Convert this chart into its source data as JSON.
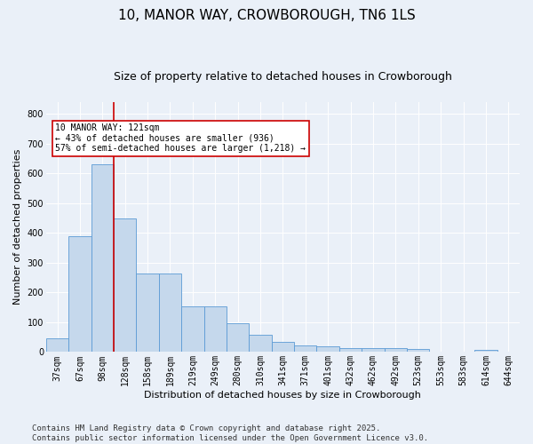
{
  "title": "10, MANOR WAY, CROWBOROUGH, TN6 1LS",
  "subtitle": "Size of property relative to detached houses in Crowborough",
  "xlabel": "Distribution of detached houses by size in Crowborough",
  "ylabel": "Number of detached properties",
  "categories": [
    "37sqm",
    "67sqm",
    "98sqm",
    "128sqm",
    "158sqm",
    "189sqm",
    "219sqm",
    "249sqm",
    "280sqm",
    "310sqm",
    "341sqm",
    "371sqm",
    "401sqm",
    "432sqm",
    "462sqm",
    "492sqm",
    "523sqm",
    "553sqm",
    "583sqm",
    "614sqm",
    "644sqm"
  ],
  "values": [
    47,
    390,
    630,
    450,
    265,
    265,
    153,
    153,
    97,
    58,
    33,
    22,
    18,
    14,
    13,
    13,
    11,
    0,
    0,
    8,
    0
  ],
  "bar_color": "#c5d8ec",
  "bar_edge_color": "#5b9bd5",
  "vline_x": 2.5,
  "vline_color": "#cc0000",
  "annotation_text": "10 MANOR WAY: 121sqm\n← 43% of detached houses are smaller (936)\n57% of semi-detached houses are larger (1,218) →",
  "annotation_box_color": "#ffffff",
  "annotation_box_edge": "#cc0000",
  "ylim": [
    0,
    840
  ],
  "yticks": [
    0,
    100,
    200,
    300,
    400,
    500,
    600,
    700,
    800
  ],
  "footnote": "Contains HM Land Registry data © Crown copyright and database right 2025.\nContains public sector information licensed under the Open Government Licence v3.0.",
  "background_color": "#eaf0f8",
  "plot_bg_color": "#eaf0f8",
  "title_fontsize": 11,
  "subtitle_fontsize": 9,
  "tick_fontsize": 7,
  "label_fontsize": 8,
  "footnote_fontsize": 6.5
}
